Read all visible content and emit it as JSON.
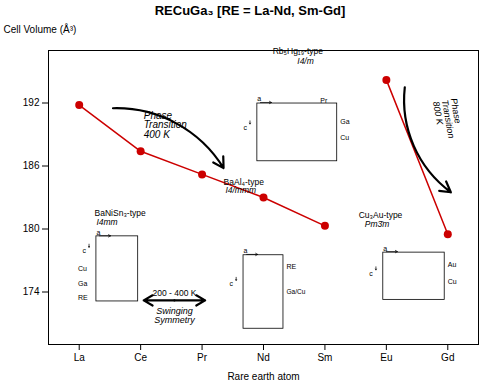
{
  "chart_data": {
    "type": "line",
    "title": "RECuGa₃ [RE = La-Nd, Sm-Gd]",
    "xlabel": "Rare earth atom",
    "ylabel": "Cell Volume (Å³)",
    "categories": [
      "La",
      "Ce",
      "Pr",
      "Nd",
      "Sm",
      "Eu",
      "Gd"
    ],
    "series": [
      {
        "color": "#cc0000",
        "values": [
          191.8,
          187.4,
          185.2,
          183.0,
          180.3,
          null,
          null
        ]
      },
      {
        "color": "#cc0000",
        "values": [
          null,
          null,
          null,
          null,
          null,
          194.2,
          179.5
        ]
      }
    ],
    "marker": "o",
    "ylim": [
      169,
      197
    ],
    "yticks": [
      174,
      180,
      186,
      192
    ],
    "annotations": [
      {
        "text": "Phase\nTransition\n400 K"
      },
      {
        "text": "Phase\nTransition\n800 K"
      },
      {
        "text": "200 - 400 K"
      },
      {
        "text": "Swinging\nSymmetry"
      },
      {
        "text": "BaNiSn₃-type"
      },
      {
        "text": "I4mm"
      },
      {
        "text": "BaAl₄-type"
      },
      {
        "text": "I4/mmm"
      },
      {
        "text": "Rb₅Hg₁₉-type"
      },
      {
        "text": "I4/m"
      },
      {
        "text": "Cu₃Au-type"
      },
      {
        "text": "Pm3̄m"
      },
      {
        "text": "a"
      },
      {
        "text": "c"
      },
      {
        "text": "Cu"
      },
      {
        "text": "Ga"
      },
      {
        "text": "RE"
      },
      {
        "text": "a"
      },
      {
        "text": "c"
      },
      {
        "text": "Pr"
      },
      {
        "text": "Ga"
      },
      {
        "text": "Cu"
      },
      {
        "text": "a"
      },
      {
        "text": "c"
      },
      {
        "text": "RE"
      },
      {
        "text": "Ga/Cu"
      },
      {
        "text": "a"
      },
      {
        "text": "c"
      },
      {
        "text": "Au"
      },
      {
        "text": "Cu"
      }
    ]
  }
}
